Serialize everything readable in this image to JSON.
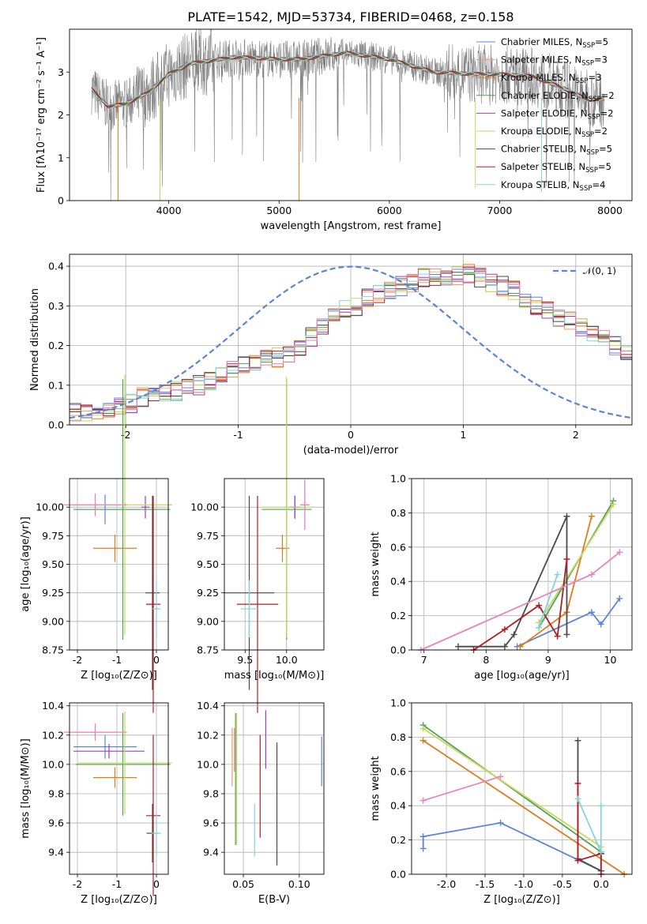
{
  "title": "PLATE=1542, MJD=53734, FIBERID=0468, z=0.158",
  "colors": {
    "c1": "#5b84d9",
    "c2": "#f39a5a",
    "c3": "#e07b1c",
    "c4": "#4ea25a",
    "c5": "#9b3fc1",
    "c6": "#c8d65a",
    "c7": "#4a4a4a",
    "c8": "#b01d24",
    "c9": "#7fd6dc",
    "pink": "#e784bc",
    "dashed": "#5b84d9",
    "grid": "#b0b0b0",
    "spectrum": "#808080"
  },
  "legend": [
    {
      "label": "Chabrier MILES, N",
      "sub": "SSP",
      "suffix": "=5",
      "color": "#5b84d9"
    },
    {
      "label": "Salpeter MILES, N",
      "sub": "SSP",
      "suffix": "=3",
      "color": "#f39a5a"
    },
    {
      "label": "Kroupa MILES, N",
      "sub": "SSP",
      "suffix": "=3",
      "color": "#e07b1c"
    },
    {
      "label": "Chabrier ELODIE, N",
      "sub": "SSP",
      "suffix": "=2",
      "color": "#4ea25a"
    },
    {
      "label": "Salpeter ELODIE, N",
      "sub": "SSP",
      "suffix": "=2",
      "color": "#9b3fc1"
    },
    {
      "label": "Kroupa ELODIE, N",
      "sub": "SSP",
      "suffix": "=2",
      "color": "#c8d65a"
    },
    {
      "label": "Chabrier STELIB, N",
      "sub": "SSP",
      "suffix": "=5",
      "color": "#4a4a4a"
    },
    {
      "label": "Salpeter STELIB, N",
      "sub": "SSP",
      "suffix": "=5",
      "color": "#b01d24"
    },
    {
      "label": "Kroupa STELIB, N",
      "sub": "SSP",
      "suffix": "=4",
      "color": "#7fd6dc"
    }
  ],
  "labels": {
    "p1_ylabel": "Flux [fλ10⁻¹⁷ erg cm⁻² s⁻¹ A⁻¹]",
    "p1_xlabel": "wavelength [Angstrom, rest frame]",
    "p2_ylabel": "Normed distribution",
    "p2_xlabel": "(data-model)/error",
    "p2_legend": "𝒩(0, 1)",
    "age_ylabel": "age  [log₁₀(age/yr)]",
    "mass_ylabel": "mass [log₁₀(M/M⊙)]",
    "z_xlabel": "Z [log₁₀(Z/Z⊙)]",
    "mass_xlabel": "mass [log₁₀(M/M⊙)]",
    "ebv_xlabel": "E(B-V)",
    "age_xlabel": "age  [log₁₀(age/yr)]",
    "mw_ylabel": "mass weight"
  },
  "chart_data": [
    {
      "type": "line",
      "title": "PLATE=1542, MJD=53734, FIBERID=0468, z=0.158",
      "xlabel": "wavelength [Angstrom, rest frame]",
      "ylabel": "Flux [fλ10⁻¹⁷ erg cm⁻² s⁻¹ A⁻¹]",
      "xlim": [
        3100,
        8200
      ],
      "ylim": [
        0,
        4
      ],
      "xticks": [
        4000,
        5000,
        6000,
        7000,
        8000
      ],
      "yticks": [
        0,
        1,
        2,
        3
      ],
      "continuum_knots": [
        [
          3300,
          2.6
        ],
        [
          3450,
          2.2
        ],
        [
          3600,
          2.25
        ],
        [
          3800,
          2.5
        ],
        [
          4000,
          2.95
        ],
        [
          4200,
          3.2
        ],
        [
          4600,
          3.35
        ],
        [
          5000,
          3.3
        ],
        [
          5200,
          3.3
        ],
        [
          5600,
          3.45
        ],
        [
          6000,
          3.3
        ],
        [
          6400,
          3.0
        ],
        [
          6800,
          2.95
        ],
        [
          7000,
          2.95
        ],
        [
          7300,
          2.9
        ],
        [
          7600,
          2.6
        ],
        [
          7800,
          2.35
        ],
        [
          8000,
          2.4
        ]
      ],
      "grid": false
    },
    {
      "type": "bar",
      "xlabel": "(data-model)/error",
      "ylabel": "Normed distribution",
      "xlim": [
        -2.5,
        2.5
      ],
      "ylim": [
        0,
        0.43
      ],
      "xticks": [
        -2,
        -1,
        0,
        1,
        2
      ],
      "yticks": [
        0.0,
        0.1,
        0.2,
        0.3,
        0.4
      ],
      "bin_edges_start": -2.5,
      "bin_width": 0.1,
      "envelope": [
        0.03,
        0.03,
        0.035,
        0.04,
        0.045,
        0.055,
        0.07,
        0.075,
        0.08,
        0.085,
        0.09,
        0.1,
        0.11,
        0.13,
        0.145,
        0.15,
        0.16,
        0.165,
        0.17,
        0.18,
        0.2,
        0.22,
        0.245,
        0.27,
        0.29,
        0.3,
        0.32,
        0.33,
        0.34,
        0.35,
        0.36,
        0.37,
        0.37,
        0.365,
        0.375,
        0.38,
        0.37,
        0.36,
        0.35,
        0.34,
        0.32,
        0.3,
        0.285,
        0.27,
        0.26,
        0.245,
        0.23,
        0.215,
        0.2,
        0.18
      ],
      "envelope_note": "first 50 of 50 bins",
      "normal_curve": {
        "name": "𝒩(0, 1)",
        "mean": 0,
        "sigma": 1
      },
      "legend_position": "upper right",
      "grid": true
    },
    {
      "type": "scatter",
      "panel": "age_vs_Z",
      "xlabel": "Z [log₁₀(Z/Z⊙)]",
      "ylabel": "age  [log₁₀(age/yr)]",
      "xlim": [
        -2.2,
        0.3
      ],
      "ylim": [
        8.75,
        10.25
      ],
      "xticks": [
        -2,
        -1,
        0
      ],
      "yticks": [
        8.75,
        9.0,
        9.25,
        9.5,
        9.75,
        10.0
      ],
      "points": [
        {
          "x": -1.3,
          "y": 9.98,
          "xerr": 0.8,
          "yerr": 0.13,
          "color": "#5b84d9"
        },
        {
          "x": -1.55,
          "y": 10.02,
          "xerr": 0.55,
          "yerr": 0.08,
          "color": "#f39a5a"
        },
        {
          "x": -1.05,
          "y": 9.64,
          "xerr": 0.55,
          "yerr": 0.12,
          "color": "#e07b1c"
        },
        {
          "x": -0.85,
          "y": 9.98,
          "xerr": 1.2,
          "yerr": 1.14,
          "color": "#4ea25a"
        },
        {
          "x": -0.28,
          "y": 10.0,
          "xerr": 0.1,
          "yerr": 0.1,
          "color": "#9b3fc1"
        },
        {
          "x": -0.8,
          "y": 10.02,
          "xerr": 1.2,
          "yerr": 1.14,
          "color": "#c8d65a"
        },
        {
          "x": -0.1,
          "y": 9.25,
          "xerr": 0.18,
          "yerr": 0.85,
          "color": "#4a4a4a"
        },
        {
          "x": -0.08,
          "y": 9.15,
          "xerr": 0.18,
          "yerr": 0.95,
          "color": "#b01d24"
        },
        {
          "x": 0.0,
          "y": 9.11,
          "xerr": 0.1,
          "yerr": 0.25,
          "color": "#7fd6dc"
        },
        {
          "x": -1.55,
          "y": 10.02,
          "xerr": 0.8,
          "yerr": 0.1,
          "color": "#e784bc"
        }
      ],
      "grid": true
    },
    {
      "type": "scatter",
      "panel": "age_vs_mass",
      "xlabel": "mass [log₁₀(M/M⊙)]",
      "xlim": [
        9.25,
        10.45
      ],
      "ylim": [
        8.75,
        10.25
      ],
      "xticks": [
        9.5,
        10.0
      ],
      "yticks": [
        8.75,
        9.0,
        9.25,
        9.5,
        9.75,
        10.0
      ],
      "points": [
        {
          "x": 10.1,
          "y": 10.0,
          "xerr": 0.08,
          "yerr": 0.1,
          "color": "#5b84d9"
        },
        {
          "x": 10.22,
          "y": 10.02,
          "xerr": 0.06,
          "yerr": 0.22,
          "color": "#f39a5a"
        },
        {
          "x": 9.95,
          "y": 9.64,
          "xerr": 0.08,
          "yerr": 0.12,
          "color": "#e07b1c"
        },
        {
          "x": 10.0,
          "y": 9.98,
          "xerr": 0.3,
          "yerr": 1.14,
          "color": "#4ea25a"
        },
        {
          "x": 10.1,
          "y": 10.0,
          "xerr": 0.05,
          "yerr": 0.1,
          "color": "#9b3fc1"
        },
        {
          "x": 10.0,
          "y": 10.0,
          "xerr": 0.3,
          "yerr": 1.14,
          "color": "#c8d65a"
        },
        {
          "x": 9.55,
          "y": 9.25,
          "xerr": 0.3,
          "yerr": 0.85,
          "color": "#4a4a4a"
        },
        {
          "x": 9.65,
          "y": 9.15,
          "xerr": 0.25,
          "yerr": 0.95,
          "color": "#b01d24"
        },
        {
          "x": 9.55,
          "y": 9.11,
          "xerr": 0.1,
          "yerr": 0.25,
          "color": "#7fd6dc"
        },
        {
          "x": 10.22,
          "y": 10.02,
          "xerr": 0.05,
          "yerr": 0.22,
          "color": "#e784bc"
        }
      ],
      "grid": true
    },
    {
      "type": "line",
      "panel": "mass_weight_vs_age",
      "xlabel": "age  [log₁₀(age/yr)]",
      "ylabel": "mass weight",
      "xlim": [
        6.8,
        10.35
      ],
      "ylim": [
        0,
        1
      ],
      "xticks": [
        7,
        8,
        9,
        10
      ],
      "yticks": [
        0.0,
        0.2,
        0.4,
        0.6,
        0.8,
        1.0
      ],
      "series": [
        {
          "color": "#5b84d9",
          "x": [
            8.5,
            9.7,
            9.85,
            10.15
          ],
          "y": [
            0.02,
            0.22,
            0.15,
            0.3
          ]
        },
        {
          "color": "#e07b1c",
          "x": [
            8.55,
            9.3,
            9.7
          ],
          "y": [
            0.02,
            0.22,
            0.78
          ]
        },
        {
          "color": "#4ea25a",
          "x": [
            8.85,
            10.05
          ],
          "y": [
            0.13,
            0.87
          ]
        },
        {
          "color": "#c8d65a",
          "x": [
            8.85,
            10.05
          ],
          "y": [
            0.16,
            0.85
          ]
        },
        {
          "color": "#4a4a4a",
          "x": [
            7.55,
            8.3,
            8.45,
            9.3,
            9.3
          ],
          "y": [
            0.02,
            0.02,
            0.09,
            0.78,
            0.09
          ]
        },
        {
          "color": "#b01d24",
          "x": [
            7.8,
            8.3,
            8.85,
            9.15,
            9.3
          ],
          "y": [
            0.0,
            0.12,
            0.26,
            0.08,
            0.53
          ]
        },
        {
          "color": "#7fd6dc",
          "x": [
            8.85,
            9.15
          ],
          "y": [
            0.13,
            0.44
          ]
        },
        {
          "color": "#e784bc",
          "x": [
            6.95,
            9.7,
            10.15
          ],
          "y": [
            0.0,
            0.44,
            0.57
          ]
        }
      ],
      "grid": true
    },
    {
      "type": "scatter",
      "panel": "mass_vs_Z",
      "xlabel": "Z [log₁₀(Z/Z⊙)]",
      "ylabel": "mass [log₁₀(M/M⊙)]",
      "xlim": [
        -2.2,
        0.3
      ],
      "ylim": [
        9.25,
        10.42
      ],
      "xticks": [
        -2,
        -1,
        0
      ],
      "yticks": [
        9.4,
        9.6,
        9.8,
        10.0,
        10.2,
        10.4
      ],
      "points": [
        {
          "x": -1.3,
          "y": 10.12,
          "xerr": 0.8,
          "yerr": 0.08,
          "color": "#5b84d9"
        },
        {
          "x": -1.55,
          "y": 10.22,
          "xerr": 0.55,
          "yerr": 0.06,
          "color": "#f39a5a"
        },
        {
          "x": -1.05,
          "y": 9.91,
          "xerr": 0.55,
          "yerr": 0.07,
          "color": "#e07b1c"
        },
        {
          "x": -0.85,
          "y": 10.0,
          "xerr": 1.2,
          "yerr": 0.35,
          "color": "#4ea25a"
        },
        {
          "x": -1.2,
          "y": 10.09,
          "xerr": 0.9,
          "yerr": 0.05,
          "color": "#9b3fc1"
        },
        {
          "x": -0.8,
          "y": 10.01,
          "xerr": 1.2,
          "yerr": 0.35,
          "color": "#c8d65a"
        },
        {
          "x": -0.1,
          "y": 9.53,
          "xerr": 0.15,
          "yerr": 0.2,
          "color": "#4a4a4a"
        },
        {
          "x": -0.08,
          "y": 9.65,
          "xerr": 0.18,
          "yerr": 0.55,
          "color": "#b01d24"
        },
        {
          "x": 0.0,
          "y": 9.53,
          "xerr": 0.12,
          "yerr": 0.15,
          "color": "#7fd6dc"
        },
        {
          "x": -1.55,
          "y": 10.22,
          "xerr": 0.8,
          "yerr": 0.05,
          "color": "#e784bc"
        }
      ],
      "grid": true
    },
    {
      "type": "scatter",
      "panel": "mass_vs_EBV",
      "xlabel": "E(B-V)",
      "xlim": [
        0.033,
        0.122
      ],
      "ylim": [
        9.25,
        10.42
      ],
      "xticks": [
        0.05,
        0.1
      ],
      "yticks": [
        9.4,
        9.6,
        9.8,
        10.0,
        10.2,
        10.4
      ],
      "points": [
        {
          "x": 0.04,
          "y": 10.05,
          "yerr": 0.2,
          "color": "#f39a5a"
        },
        {
          "x": 0.042,
          "y": 10.1,
          "yerr": 0.15,
          "color": "#e784bc"
        },
        {
          "x": 0.043,
          "y": 9.9,
          "yerr": 0.45,
          "color": "#4ea25a"
        },
        {
          "x": 0.044,
          "y": 9.9,
          "yerr": 0.45,
          "color": "#c8d65a"
        },
        {
          "x": 0.06,
          "y": 9.55,
          "yerr": 0.18,
          "color": "#7fd6dc"
        },
        {
          "x": 0.065,
          "y": 9.85,
          "yerr": 0.35,
          "color": "#b01d24"
        },
        {
          "x": 0.07,
          "y": 10.17,
          "yerr": 0.2,
          "color": "#9b3fc1"
        },
        {
          "x": 0.08,
          "y": 9.73,
          "yerr": 0.42,
          "color": "#4a4a4a"
        },
        {
          "x": 0.12,
          "y": 10.02,
          "yerr": 0.17,
          "color": "#5b84d9"
        }
      ],
      "grid": true
    },
    {
      "type": "line",
      "panel": "mass_weight_vs_Z",
      "xlabel": "Z [log₁₀(Z/Z⊙)]",
      "ylabel": "mass weight",
      "xlim": [
        -2.45,
        0.4
      ],
      "ylim": [
        0,
        1
      ],
      "xticks": [
        -2.0,
        -1.5,
        -1.0,
        -0.5,
        0.0
      ],
      "yticks": [
        0.0,
        0.2,
        0.4,
        0.6,
        0.8,
        1.0
      ],
      "series": [
        {
          "color": "#5b84d9",
          "x": [
            -2.3,
            -2.3,
            -1.3,
            0.0
          ],
          "y": [
            0.15,
            0.22,
            0.3,
            0.02
          ]
        },
        {
          "color": "#e07b1c",
          "x": [
            -2.3,
            0.3
          ],
          "y": [
            0.78,
            0.0
          ]
        },
        {
          "color": "#4ea25a",
          "x": [
            -2.3,
            0.0
          ],
          "y": [
            0.87,
            0.13
          ]
        },
        {
          "color": "#c8d65a",
          "x": [
            -2.3,
            0.0
          ],
          "y": [
            0.85,
            0.16
          ]
        },
        {
          "color": "#4a4a4a",
          "x": [
            -0.3,
            -0.3,
            0.0,
            0.0
          ],
          "y": [
            0.78,
            0.09,
            0.02,
            0.12
          ]
        },
        {
          "color": "#b01d24",
          "x": [
            -0.3,
            -0.3,
            0.0,
            0.0
          ],
          "y": [
            0.53,
            0.08,
            0.12,
            0.0
          ]
        },
        {
          "color": "#7fd6dc",
          "x": [
            -0.3,
            0.0,
            0.0
          ],
          "y": [
            0.44,
            0.13,
            0.4
          ]
        },
        {
          "color": "#e784bc",
          "x": [
            -2.3,
            -1.3
          ],
          "y": [
            0.43,
            0.57
          ]
        }
      ],
      "grid": true
    }
  ]
}
